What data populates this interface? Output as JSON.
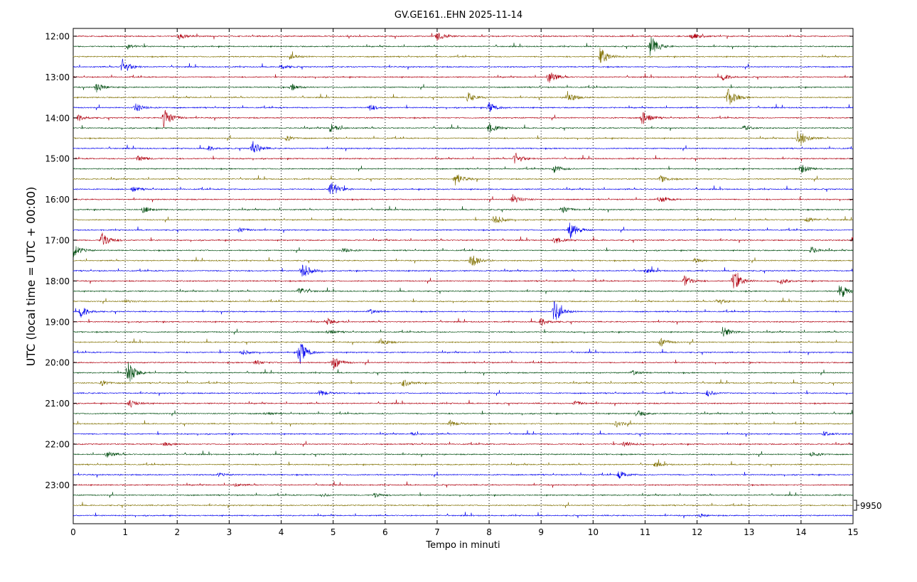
{
  "chart_data": {
    "type": "line",
    "title": "GV.GE161..EHN 2025-11-14",
    "xlabel": "Tempo in minuti",
    "ylabel": "UTC (local time = UTC + 00:00)",
    "xlim": [
      0,
      15
    ],
    "x_ticks": [
      0,
      1,
      2,
      3,
      4,
      5,
      6,
      7,
      8,
      9,
      10,
      11,
      12,
      13,
      14,
      15
    ],
    "y_tick_labels": [
      "12:00",
      "13:00",
      "14:00",
      "15:00",
      "16:00",
      "17:00",
      "18:00",
      "19:00",
      "20:00",
      "21:00",
      "22:00",
      "23:00"
    ],
    "trace_start": "12:00",
    "trace_interval_minutes": 15,
    "trace_count": 48,
    "trace_colors": [
      "#b0000f",
      "#004d10",
      "#807000",
      "#0000ee"
    ],
    "grid_x": "dotted vertical lines at each minute",
    "scale_label": "9950",
    "events": [
      {
        "trace": 0,
        "minute": 7.0,
        "amp": 0.5
      },
      {
        "trace": 0,
        "minute": 11.9,
        "amp": 0.4
      },
      {
        "trace": 0,
        "minute": 2.05,
        "amp": 0.4
      },
      {
        "trace": 1,
        "minute": 11.1,
        "amp": 1.4
      },
      {
        "trace": 1,
        "minute": 1.05,
        "amp": 0.3
      },
      {
        "trace": 2,
        "minute": 10.15,
        "amp": 1.1
      },
      {
        "trace": 2,
        "minute": 4.2,
        "amp": 0.3
      },
      {
        "trace": 3,
        "minute": 0.95,
        "amp": 0.9
      },
      {
        "trace": 3,
        "minute": 4.0,
        "amp": 0.3
      },
      {
        "trace": 4,
        "minute": 9.15,
        "amp": 0.8
      },
      {
        "trace": 4,
        "minute": 12.5,
        "amp": 0.4
      },
      {
        "trace": 5,
        "minute": 0.45,
        "amp": 0.6
      },
      {
        "trace": 5,
        "minute": 4.2,
        "amp": 0.4
      },
      {
        "trace": 6,
        "minute": 12.6,
        "amp": 1.2
      },
      {
        "trace": 6,
        "minute": 9.5,
        "amp": 0.8
      },
      {
        "trace": 6,
        "minute": 7.6,
        "amp": 0.6
      },
      {
        "trace": 7,
        "minute": 1.2,
        "amp": 0.5
      },
      {
        "trace": 7,
        "minute": 5.7,
        "amp": 0.4
      },
      {
        "trace": 7,
        "minute": 8.0,
        "amp": 0.6
      },
      {
        "trace": 8,
        "minute": 1.75,
        "amp": 1.3
      },
      {
        "trace": 8,
        "minute": 0.1,
        "amp": 0.4
      },
      {
        "trace": 8,
        "minute": 10.95,
        "amp": 0.9
      },
      {
        "trace": 9,
        "minute": 4.95,
        "amp": 0.6
      },
      {
        "trace": 9,
        "minute": 8.0,
        "amp": 0.6
      },
      {
        "trace": 9,
        "minute": 12.9,
        "amp": 0.3
      },
      {
        "trace": 10,
        "minute": 13.95,
        "amp": 1.2
      },
      {
        "trace": 10,
        "minute": 4.1,
        "amp": 0.3
      },
      {
        "trace": 11,
        "minute": 3.45,
        "amp": 0.9
      },
      {
        "trace": 11,
        "minute": 2.6,
        "amp": 0.3
      },
      {
        "trace": 12,
        "minute": 8.5,
        "amp": 0.7
      },
      {
        "trace": 12,
        "minute": 1.25,
        "amp": 0.4
      },
      {
        "trace": 13,
        "minute": 9.25,
        "amp": 0.5
      },
      {
        "trace": 13,
        "minute": 14.0,
        "amp": 0.6
      },
      {
        "trace": 14,
        "minute": 7.35,
        "amp": 0.8
      },
      {
        "trace": 14,
        "minute": 11.3,
        "amp": 0.4
      },
      {
        "trace": 15,
        "minute": 4.95,
        "amp": 1.1
      },
      {
        "trace": 15,
        "minute": 1.15,
        "amp": 0.3
      },
      {
        "trace": 16,
        "minute": 8.45,
        "amp": 0.6
      },
      {
        "trace": 16,
        "minute": 11.3,
        "amp": 0.4
      },
      {
        "trace": 17,
        "minute": 1.35,
        "amp": 0.4
      },
      {
        "trace": 17,
        "minute": 9.4,
        "amp": 0.5
      },
      {
        "trace": 18,
        "minute": 8.1,
        "amp": 0.7
      },
      {
        "trace": 18,
        "minute": 14.1,
        "amp": 0.4
      },
      {
        "trace": 19,
        "minute": 9.55,
        "amp": 1.1
      },
      {
        "trace": 19,
        "minute": 3.2,
        "amp": 0.3
      },
      {
        "trace": 20,
        "minute": 0.55,
        "amp": 1.0
      },
      {
        "trace": 20,
        "minute": 9.25,
        "amp": 0.5
      },
      {
        "trace": 20,
        "minute": 15.0,
        "amp": 0.6
      },
      {
        "trace": 21,
        "minute": 0.0,
        "amp": 0.8
      },
      {
        "trace": 21,
        "minute": 5.2,
        "amp": 0.3
      },
      {
        "trace": 21,
        "minute": 14.2,
        "amp": 0.4
      },
      {
        "trace": 22,
        "minute": 7.65,
        "amp": 1.0
      },
      {
        "trace": 22,
        "minute": 11.95,
        "amp": 0.3
      },
      {
        "trace": 23,
        "minute": 4.4,
        "amp": 1.1
      },
      {
        "trace": 23,
        "minute": 11.0,
        "amp": 0.3
      },
      {
        "trace": 24,
        "minute": 12.7,
        "amp": 1.3
      },
      {
        "trace": 24,
        "minute": 11.75,
        "amp": 0.7
      },
      {
        "trace": 24,
        "minute": 13.6,
        "amp": 0.4
      },
      {
        "trace": 25,
        "minute": 14.75,
        "amp": 1.0
      },
      {
        "trace": 25,
        "minute": 4.35,
        "amp": 0.5
      },
      {
        "trace": 26,
        "minute": 12.4,
        "amp": 0.4
      },
      {
        "trace": 26,
        "minute": 1.0,
        "amp": 0.2
      },
      {
        "trace": 27,
        "minute": 9.25,
        "amp": 1.3
      },
      {
        "trace": 27,
        "minute": 0.15,
        "amp": 0.7
      },
      {
        "trace": 27,
        "minute": 5.7,
        "amp": 0.3
      },
      {
        "trace": 28,
        "minute": 9.0,
        "amp": 0.5
      },
      {
        "trace": 28,
        "minute": 4.9,
        "amp": 0.4
      },
      {
        "trace": 29,
        "minute": 12.5,
        "amp": 0.7
      },
      {
        "trace": 29,
        "minute": 4.9,
        "amp": 0.3
      },
      {
        "trace": 30,
        "minute": 5.9,
        "amp": 0.5
      },
      {
        "trace": 30,
        "minute": 11.3,
        "amp": 0.5
      },
      {
        "trace": 31,
        "minute": 4.35,
        "amp": 1.5
      },
      {
        "trace": 31,
        "minute": 3.25,
        "amp": 0.3
      },
      {
        "trace": 32,
        "minute": 5.0,
        "amp": 0.8
      },
      {
        "trace": 32,
        "minute": 3.5,
        "amp": 0.3
      },
      {
        "trace": 33,
        "minute": 1.05,
        "amp": 1.5
      },
      {
        "trace": 33,
        "minute": 10.75,
        "amp": 0.3
      },
      {
        "trace": 34,
        "minute": 6.35,
        "amp": 0.5
      },
      {
        "trace": 34,
        "minute": 0.55,
        "amp": 0.3
      },
      {
        "trace": 35,
        "minute": 4.75,
        "amp": 0.4
      },
      {
        "trace": 35,
        "minute": 12.2,
        "amp": 0.4
      },
      {
        "trace": 36,
        "minute": 1.08,
        "amp": 0.5
      },
      {
        "trace": 36,
        "minute": 9.65,
        "amp": 0.3
      },
      {
        "trace": 37,
        "minute": 10.85,
        "amp": 0.4
      },
      {
        "trace": 37,
        "minute": 3.7,
        "amp": 0.2
      },
      {
        "trace": 38,
        "minute": 7.25,
        "amp": 0.4
      },
      {
        "trace": 38,
        "minute": 10.45,
        "amp": 0.4
      },
      {
        "trace": 39,
        "minute": 14.45,
        "amp": 0.3
      },
      {
        "trace": 39,
        "minute": 6.5,
        "amp": 0.2
      },
      {
        "trace": 40,
        "minute": 1.75,
        "amp": 0.2
      },
      {
        "trace": 40,
        "minute": 10.6,
        "amp": 0.4
      },
      {
        "trace": 41,
        "minute": 0.65,
        "amp": 0.4
      },
      {
        "trace": 41,
        "minute": 14.2,
        "amp": 0.3
      },
      {
        "trace": 42,
        "minute": 11.2,
        "amp": 0.3
      },
      {
        "trace": 43,
        "minute": 10.5,
        "amp": 0.5
      },
      {
        "trace": 43,
        "minute": 2.8,
        "amp": 0.2
      },
      {
        "trace": 44,
        "minute": 3.1,
        "amp": 0.2
      },
      {
        "trace": 45,
        "minute": 5.8,
        "amp": 0.3
      },
      {
        "trace": 45,
        "minute": 4.8,
        "amp": 0.2
      },
      {
        "trace": 47,
        "minute": 12.05,
        "amp": 0.2
      }
    ]
  }
}
